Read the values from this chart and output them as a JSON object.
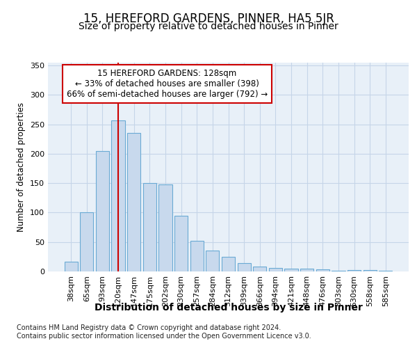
{
  "title1": "15, HEREFORD GARDENS, PINNER, HA5 5JR",
  "title2": "Size of property relative to detached houses in Pinner",
  "xlabel": "Distribution of detached houses by size in Pinner",
  "ylabel": "Number of detached properties",
  "categories": [
    "38sqm",
    "65sqm",
    "93sqm",
    "120sqm",
    "147sqm",
    "175sqm",
    "202sqm",
    "230sqm",
    "257sqm",
    "284sqm",
    "312sqm",
    "339sqm",
    "366sqm",
    "394sqm",
    "421sqm",
    "448sqm",
    "476sqm",
    "503sqm",
    "530sqm",
    "558sqm",
    "585sqm"
  ],
  "values": [
    17,
    100,
    205,
    257,
    235,
    150,
    148,
    95,
    52,
    35,
    25,
    14,
    8,
    6,
    5,
    5,
    4,
    1,
    2,
    2,
    1
  ],
  "bar_color": "#c8d9ed",
  "bar_edge_color": "#6aaad4",
  "grid_color": "#c5d5e8",
  "background_color": "#e8f0f8",
  "vline_x_index": 3,
  "vline_color": "#cc0000",
  "annotation_line1": "15 HEREFORD GARDENS: 128sqm",
  "annotation_line2": "← 33% of detached houses are smaller (398)",
  "annotation_line3": "66% of semi-detached houses are larger (792) →",
  "annotation_box_color": "#ffffff",
  "annotation_box_edgecolor": "#cc0000",
  "footer": "Contains HM Land Registry data © Crown copyright and database right 2024.\nContains public sector information licensed under the Open Government Licence v3.0.",
  "ylim": [
    0,
    355
  ],
  "yticks": [
    0,
    50,
    100,
    150,
    200,
    250,
    300,
    350
  ],
  "title1_fontsize": 12,
  "title2_fontsize": 10,
  "xlabel_fontsize": 10,
  "ylabel_fontsize": 8.5,
  "tick_fontsize": 8,
  "annotation_fontsize": 8.5,
  "footer_fontsize": 7
}
